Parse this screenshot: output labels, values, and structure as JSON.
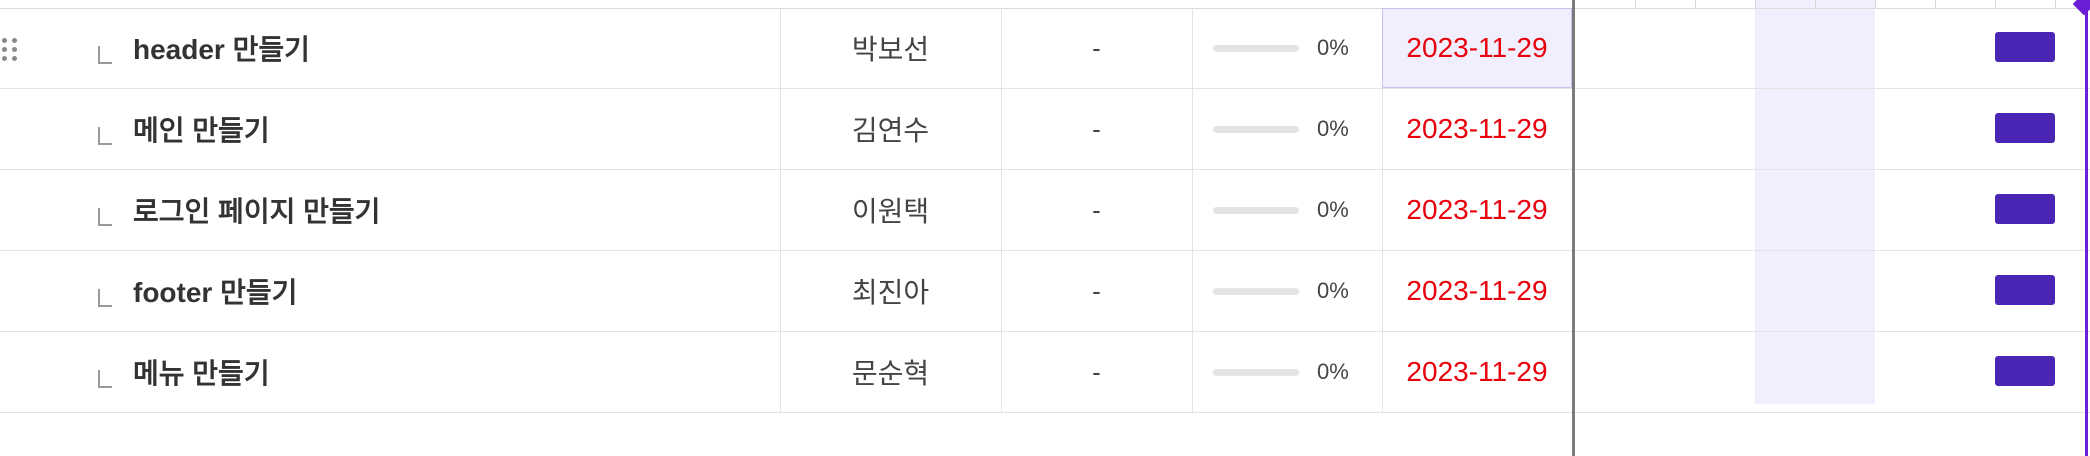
{
  "colors": {
    "due_date_overdue": "#e8000d",
    "gantt_bar": "#4b26b5",
    "weekend_highlight": "#f1effd",
    "today_line": "#6a1fd6"
  },
  "tasks": [
    {
      "title": "header 만들기",
      "assignee": "박보선",
      "duration": "-",
      "progress_percent": 0,
      "progress_label": "0%",
      "due_date": "2023-11-29"
    },
    {
      "title": "메인 만들기",
      "assignee": "김연수",
      "duration": "-",
      "progress_percent": 0,
      "progress_label": "0%",
      "due_date": "2023-11-29"
    },
    {
      "title": "로그인 페이지 만들기",
      "assignee": "이원택",
      "duration": "-",
      "progress_percent": 0,
      "progress_label": "0%",
      "due_date": "2023-11-29"
    },
    {
      "title": "footer 만들기",
      "assignee": "최진아",
      "duration": "-",
      "progress_percent": 0,
      "progress_label": "0%",
      "due_date": "2023-11-29"
    },
    {
      "title": "메뉴 만들기",
      "assignee": "문순혁",
      "duration": "-",
      "progress_percent": 0,
      "progress_label": "0%",
      "due_date": "2023-11-29"
    }
  ]
}
